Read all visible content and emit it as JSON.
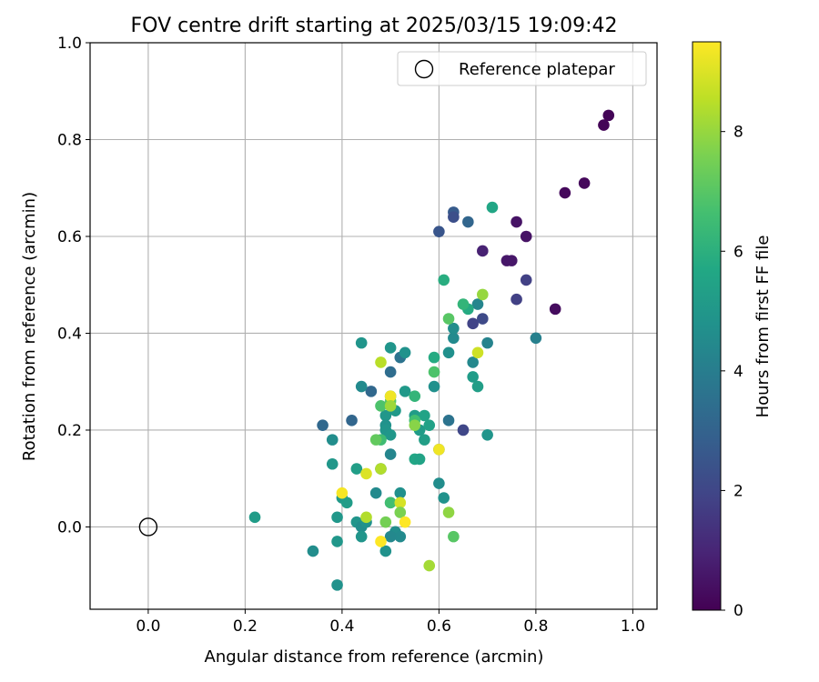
{
  "chart_data": {
    "type": "scatter",
    "title": "FOV centre drift starting at 2025/03/15 19:09:42",
    "xlabel": "Angular distance from reference (arcmin)",
    "ylabel": "Rotation from reference (arcmin)",
    "xlim": [
      -0.12,
      1.05
    ],
    "ylim": [
      -0.17,
      1.0
    ],
    "xticks": [
      0.0,
      0.2,
      0.4,
      0.6,
      0.8,
      1.0
    ],
    "yticks": [
      0.0,
      0.2,
      0.4,
      0.6,
      0.8,
      1.0
    ],
    "grid": true,
    "legend": {
      "placement": "top-right",
      "entries": [
        {
          "label": "Reference platepar",
          "marker": "open-circle"
        }
      ]
    },
    "reference_point": {
      "x": 0.0,
      "y": 0.0
    },
    "colorbar": {
      "label": "Hours from first FF file",
      "min": 0,
      "max": 9.5,
      "ticks": [
        0,
        2,
        4,
        6,
        8
      ],
      "colormap": "viridis"
    },
    "points": [
      {
        "x": 0.95,
        "y": 0.85,
        "c": 0.1
      },
      {
        "x": 0.94,
        "y": 0.83,
        "c": 0.1
      },
      {
        "x": 0.9,
        "y": 0.71,
        "c": 0.2
      },
      {
        "x": 0.86,
        "y": 0.69,
        "c": 0.2
      },
      {
        "x": 0.84,
        "y": 0.45,
        "c": 0.3
      },
      {
        "x": 0.78,
        "y": 0.6,
        "c": 0.5
      },
      {
        "x": 0.76,
        "y": 0.63,
        "c": 0.5
      },
      {
        "x": 0.74,
        "y": 0.55,
        "c": 0.6
      },
      {
        "x": 0.75,
        "y": 0.55,
        "c": 0.6
      },
      {
        "x": 0.69,
        "y": 0.57,
        "c": 0.9
      },
      {
        "x": 0.78,
        "y": 0.51,
        "c": 1.8
      },
      {
        "x": 0.76,
        "y": 0.47,
        "c": 1.8
      },
      {
        "x": 0.69,
        "y": 0.43,
        "c": 2.1
      },
      {
        "x": 0.67,
        "y": 0.42,
        "c": 1.9
      },
      {
        "x": 0.65,
        "y": 0.2,
        "c": 2.0
      },
      {
        "x": 0.6,
        "y": 0.61,
        "c": 2.5
      },
      {
        "x": 0.63,
        "y": 0.65,
        "c": 2.7
      },
      {
        "x": 0.63,
        "y": 0.64,
        "c": 2.3
      },
      {
        "x": 0.66,
        "y": 0.63,
        "c": 3.1
      },
      {
        "x": 0.36,
        "y": 0.21,
        "c": 3.2
      },
      {
        "x": 0.42,
        "y": 0.22,
        "c": 3.1
      },
      {
        "x": 0.46,
        "y": 0.28,
        "c": 3.2
      },
      {
        "x": 0.5,
        "y": 0.32,
        "c": 3.4
      },
      {
        "x": 0.52,
        "y": 0.35,
        "c": 3.6
      },
      {
        "x": 0.62,
        "y": 0.22,
        "c": 3.6
      },
      {
        "x": 0.8,
        "y": 0.39,
        "c": 4.1
      },
      {
        "x": 0.7,
        "y": 0.38,
        "c": 4.2
      },
      {
        "x": 0.68,
        "y": 0.46,
        "c": 4.3
      },
      {
        "x": 0.67,
        "y": 0.34,
        "c": 4.4
      },
      {
        "x": 0.63,
        "y": 0.39,
        "c": 4.5
      },
      {
        "x": 0.63,
        "y": 0.41,
        "c": 4.6
      },
      {
        "x": 0.62,
        "y": 0.36,
        "c": 4.7
      },
      {
        "x": 0.59,
        "y": 0.29,
        "c": 4.7
      },
      {
        "x": 0.53,
        "y": 0.36,
        "c": 4.8
      },
      {
        "x": 0.5,
        "y": 0.37,
        "c": 4.9
      },
      {
        "x": 0.44,
        "y": 0.38,
        "c": 4.9
      },
      {
        "x": 0.44,
        "y": 0.29,
        "c": 4.5
      },
      {
        "x": 0.5,
        "y": 0.27,
        "c": 5.0
      },
      {
        "x": 0.49,
        "y": 0.23,
        "c": 5.0
      },
      {
        "x": 0.51,
        "y": 0.24,
        "c": 5.1
      },
      {
        "x": 0.53,
        "y": 0.28,
        "c": 5.1
      },
      {
        "x": 0.55,
        "y": 0.23,
        "c": 5.2
      },
      {
        "x": 0.56,
        "y": 0.2,
        "c": 5.2
      },
      {
        "x": 0.58,
        "y": 0.21,
        "c": 5.4
      },
      {
        "x": 0.57,
        "y": 0.23,
        "c": 5.5
      },
      {
        "x": 0.57,
        "y": 0.18,
        "c": 5.3
      },
      {
        "x": 0.49,
        "y": 0.21,
        "c": 4.8
      },
      {
        "x": 0.49,
        "y": 0.2,
        "c": 4.9
      },
      {
        "x": 0.5,
        "y": 0.19,
        "c": 5.0
      },
      {
        "x": 0.5,
        "y": 0.15,
        "c": 4.3
      },
      {
        "x": 0.48,
        "y": 0.12,
        "c": 4.4
      },
      {
        "x": 0.38,
        "y": 0.18,
        "c": 4.6
      },
      {
        "x": 0.38,
        "y": 0.13,
        "c": 5.0
      },
      {
        "x": 0.43,
        "y": 0.12,
        "c": 5.3
      },
      {
        "x": 0.6,
        "y": 0.16,
        "c": 4.0
      },
      {
        "x": 0.6,
        "y": 0.09,
        "c": 4.6
      },
      {
        "x": 0.61,
        "y": 0.06,
        "c": 4.8
      },
      {
        "x": 0.7,
        "y": 0.19,
        "c": 4.9
      },
      {
        "x": 0.67,
        "y": 0.31,
        "c": 5.2
      },
      {
        "x": 0.68,
        "y": 0.29,
        "c": 5.3
      },
      {
        "x": 0.71,
        "y": 0.66,
        "c": 5.6
      },
      {
        "x": 0.66,
        "y": 0.45,
        "c": 5.8
      },
      {
        "x": 0.61,
        "y": 0.51,
        "c": 5.9
      },
      {
        "x": 0.59,
        "y": 0.35,
        "c": 5.8
      },
      {
        "x": 0.55,
        "y": 0.14,
        "c": 5.6
      },
      {
        "x": 0.56,
        "y": 0.14,
        "c": 5.5
      },
      {
        "x": 0.4,
        "y": 0.06,
        "c": 5.1
      },
      {
        "x": 0.41,
        "y": 0.05,
        "c": 5.2
      },
      {
        "x": 0.39,
        "y": 0.02,
        "c": 5.0
      },
      {
        "x": 0.43,
        "y": 0.01,
        "c": 4.9
      },
      {
        "x": 0.44,
        "y": 0.0,
        "c": 4.6
      },
      {
        "x": 0.45,
        "y": 0.01,
        "c": 4.8
      },
      {
        "x": 0.47,
        "y": 0.07,
        "c": 4.5
      },
      {
        "x": 0.5,
        "y": 0.05,
        "c": 4.6
      },
      {
        "x": 0.52,
        "y": 0.07,
        "c": 4.7
      },
      {
        "x": 0.51,
        "y": -0.01,
        "c": 4.6
      },
      {
        "x": 0.52,
        "y": -0.02,
        "c": 4.5
      },
      {
        "x": 0.5,
        "y": -0.02,
        "c": 4.4
      },
      {
        "x": 0.49,
        "y": -0.05,
        "c": 4.8
      },
      {
        "x": 0.44,
        "y": -0.02,
        "c": 4.9
      },
      {
        "x": 0.39,
        "y": -0.03,
        "c": 5.0
      },
      {
        "x": 0.34,
        "y": -0.05,
        "c": 4.6
      },
      {
        "x": 0.39,
        "y": -0.12,
        "c": 4.8
      },
      {
        "x": 0.22,
        "y": 0.02,
        "c": 5.2
      },
      {
        "x": 0.48,
        "y": 0.25,
        "c": 6.8
      },
      {
        "x": 0.5,
        "y": 0.26,
        "c": 7.0
      },
      {
        "x": 0.55,
        "y": 0.27,
        "c": 6.2
      },
      {
        "x": 0.55,
        "y": 0.22,
        "c": 6.6
      },
      {
        "x": 0.48,
        "y": 0.18,
        "c": 6.5
      },
      {
        "x": 0.47,
        "y": 0.18,
        "c": 7.2
      },
      {
        "x": 0.59,
        "y": 0.32,
        "c": 6.8
      },
      {
        "x": 0.62,
        "y": 0.43,
        "c": 7.0
      },
      {
        "x": 0.65,
        "y": 0.46,
        "c": 6.2
      },
      {
        "x": 0.69,
        "y": 0.48,
        "c": 8.0
      },
      {
        "x": 0.68,
        "y": 0.36,
        "c": 8.8
      },
      {
        "x": 0.48,
        "y": 0.34,
        "c": 8.5
      },
      {
        "x": 0.5,
        "y": 0.27,
        "c": 9.3
      },
      {
        "x": 0.5,
        "y": 0.25,
        "c": 8.1
      },
      {
        "x": 0.55,
        "y": 0.21,
        "c": 7.8
      },
      {
        "x": 0.6,
        "y": 0.16,
        "c": 9.3
      },
      {
        "x": 0.45,
        "y": 0.11,
        "c": 9.0
      },
      {
        "x": 0.48,
        "y": 0.12,
        "c": 8.4
      },
      {
        "x": 0.4,
        "y": 0.07,
        "c": 9.4
      },
      {
        "x": 0.5,
        "y": 0.05,
        "c": 6.6
      },
      {
        "x": 0.52,
        "y": 0.05,
        "c": 8.9
      },
      {
        "x": 0.52,
        "y": 0.03,
        "c": 7.6
      },
      {
        "x": 0.45,
        "y": 0.02,
        "c": 8.4
      },
      {
        "x": 0.49,
        "y": 0.01,
        "c": 7.5
      },
      {
        "x": 0.53,
        "y": 0.01,
        "c": 9.5
      },
      {
        "x": 0.48,
        "y": -0.03,
        "c": 9.5
      },
      {
        "x": 0.62,
        "y": 0.03,
        "c": 7.9
      },
      {
        "x": 0.63,
        "y": -0.02,
        "c": 7.0
      },
      {
        "x": 0.58,
        "y": -0.08,
        "c": 8.2
      }
    ]
  }
}
